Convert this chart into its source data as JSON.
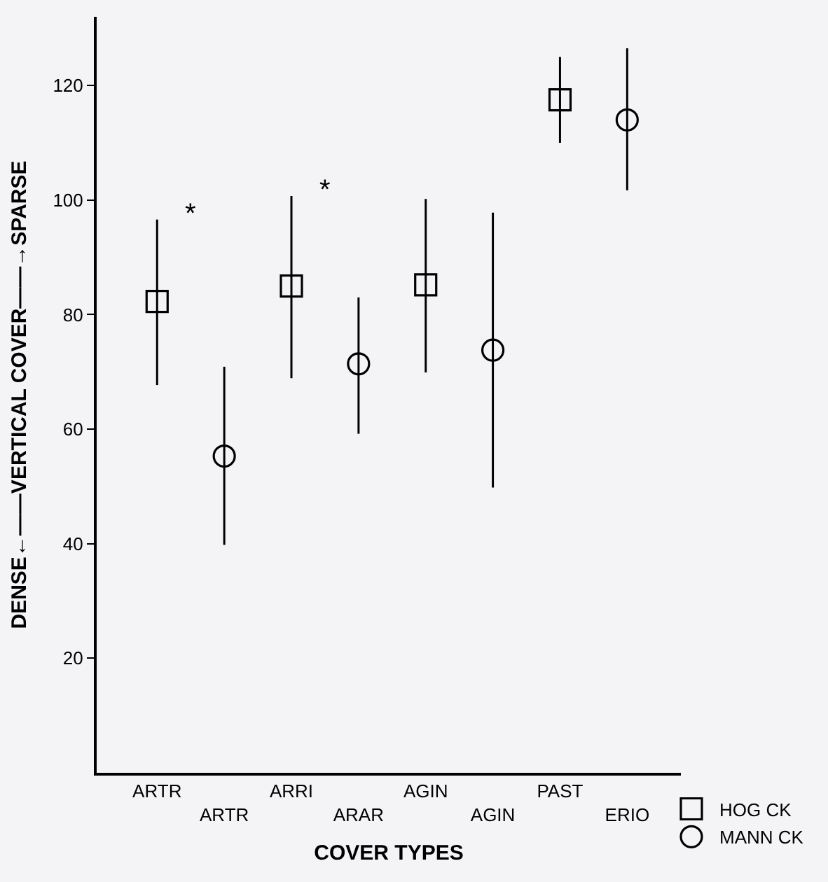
{
  "chart_data": {
    "type": "scatter",
    "xlabel": "COVER TYPES",
    "ylabel": "DENSE←——VERTICAL COVER——→SPARSE",
    "categories": [
      "ARTR",
      "ARTR",
      "ARRI",
      "ARAR",
      "AGIN",
      "AGIN",
      "PAST",
      "ERIO"
    ],
    "series": [
      {
        "name": "HOG CK",
        "color": "#000000",
        "marker": "square",
        "values": [
          82.3,
          null,
          85,
          null,
          85.2,
          null,
          117.5,
          null
        ],
        "errors": [
          [
            67.7,
            96.6
          ],
          null,
          [
            68.9,
            100.7
          ],
          null,
          [
            69.9,
            100.2
          ],
          null,
          [
            110,
            125
          ],
          null
        ]
      },
      {
        "name": "MANN CK",
        "color": "#000000",
        "marker": "circle",
        "values": [
          null,
          55.3,
          null,
          71.4,
          null,
          73.8,
          null,
          114
        ],
        "errors": [
          null,
          [
            39.8,
            70.9
          ],
          null,
          [
            59.2,
            83
          ],
          null,
          [
            49.8,
            97.8
          ],
          null,
          [
            101.7,
            126.5
          ]
        ]
      }
    ],
    "annotations": [
      "*",
      "*"
    ],
    "ylim": [
      0,
      132
    ],
    "yticks": [
      20,
      40,
      60,
      80,
      100,
      120
    ],
    "grid": false,
    "legend": "bottom right"
  }
}
